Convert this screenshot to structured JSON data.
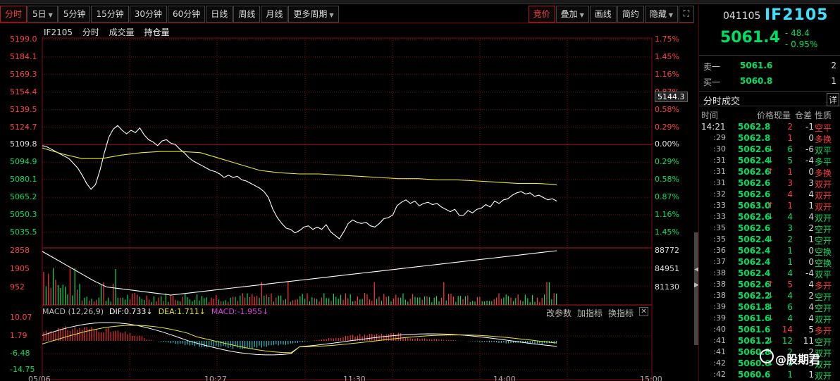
{
  "toolbar": {
    "buttons": [
      {
        "label": "分时",
        "active": true
      },
      {
        "label": "5日",
        "caret": true
      },
      {
        "label": "5分钟"
      },
      {
        "label": "15分钟"
      },
      {
        "label": "30分钟"
      },
      {
        "label": "60分钟"
      },
      {
        "label": "日线"
      },
      {
        "label": "周线"
      },
      {
        "label": "月线"
      },
      {
        "label": "更多周期",
        "caret": true
      }
    ],
    "right_buttons": [
      {
        "label": "竞价",
        "active": true
      },
      {
        "label": "叠加",
        "caret": true
      },
      {
        "label": "画线"
      },
      {
        "label": "简约"
      },
      {
        "label": "隐藏",
        "caret": true
      }
    ],
    "icons": [
      "expand-icon"
    ]
  },
  "chart_title": {
    "symbol": "IF2105",
    "items": [
      "分时",
      "成交量",
      "持仓量"
    ]
  },
  "price_axis_left": [
    "5199.0",
    "5184.1",
    "5169.3",
    "5154.4",
    "5139.5",
    "5124.7",
    "5109.8",
    "5094.9",
    "5080.1",
    "5065.2",
    "5050.3",
    "5035.5"
  ],
  "price_axis_right": [
    "1.75%",
    "1.45%",
    "1.16%",
    "0.87%",
    "0.58%",
    "0.29%",
    "0.00%",
    "0.29%",
    "0.58%",
    "0.87%",
    "1.16%",
    "1.45%"
  ],
  "price_axis_right_colors": [
    "#ff4040",
    "#ff4040",
    "#ff4040",
    "#ff4040",
    "#ff4040",
    "#ff4040",
    "#dddddd",
    "#00e060",
    "#00e060",
    "#00e060",
    "#00e060",
    "#00e060"
  ],
  "current_price_tag": "5144.3",
  "volume_axis_left": [
    "2858",
    "1905",
    "952"
  ],
  "oi_axis_right": [
    "88772",
    "84951",
    "81130"
  ],
  "macd": {
    "label": "MACD (12,26,9)",
    "dif": "DIF:0.733↓",
    "dea": "DEA:1.711↓",
    "macd": "MACD:-1.955↓",
    "axis": [
      "10.07",
      "1.79",
      "-6.48",
      "-14.75"
    ],
    "tools": [
      "改参数",
      "加指标",
      "换指标"
    ]
  },
  "time_axis": [
    "05/06",
    "10:27",
    "11:30",
    "14:00",
    "15:00"
  ],
  "chart_data": {
    "type": "line",
    "y_range": [
      5035.5,
      5199.0
    ],
    "price_series": [
      5109,
      5108,
      5106,
      5104,
      5102,
      5100,
      5098,
      5094,
      5090,
      5084,
      5077,
      5072,
      5076,
      5088,
      5103,
      5116,
      5123,
      5126,
      5122,
      5119,
      5122,
      5120,
      5124,
      5118,
      5114,
      5112,
      5109,
      5113,
      5114,
      5111,
      5110,
      5106,
      5103,
      5099,
      5096,
      5094,
      5092,
      5090,
      5088,
      5087,
      5085,
      5082,
      5084,
      5082,
      5083,
      5080,
      5079,
      5077,
      5075,
      5073,
      5070,
      5065,
      5055,
      5048,
      5043,
      5039,
      5038,
      5035,
      5037,
      5040,
      5041,
      5038,
      5040,
      5038,
      5042,
      5036,
      5033,
      5030,
      5036,
      5043,
      5046,
      5044,
      5043,
      5044,
      5041,
      5040,
      5043,
      5047,
      5048,
      5050,
      5058,
      5061,
      5063,
      5060,
      5062,
      5058,
      5060,
      5061,
      5059,
      5060,
      5057,
      5055,
      5053,
      5055,
      5050,
      5050,
      5054,
      5052,
      5055,
      5056,
      5059,
      5057,
      5062,
      5060,
      5063,
      5064,
      5067,
      5069,
      5070,
      5068,
      5069,
      5066,
      5067,
      5065,
      5063,
      5064,
      5062
    ],
    "avg_series": [
      5107,
      5102,
      5098,
      5098,
      5101,
      5103,
      5104,
      5104,
      5103,
      5098,
      5093,
      5088,
      5086,
      5085,
      5085,
      5084,
      5083,
      5082,
      5081,
      5081,
      5080,
      5080,
      5079,
      5078,
      5077,
      5077,
      5076
    ],
    "volume_y_range": [
      0,
      2858
    ],
    "oi_y_range": [
      81130,
      88772
    ],
    "macd_y_range": [
      -14.75,
      10.07
    ]
  },
  "quote": {
    "code": "041105",
    "symbol": "IF2105",
    "last": "5061.4",
    "change": "- 48.4",
    "change_pct": "- 0.95%"
  },
  "order_book": [
    {
      "label": "卖一",
      "price": "5061.6",
      "qty": "2"
    },
    {
      "label": "买一",
      "price": "5060.8",
      "qty": "1"
    }
  ],
  "trades_panel": {
    "title": "分时成交",
    "detail": "详",
    "columns": [
      "时间",
      "价格",
      "现量",
      "仓差",
      "性质"
    ],
    "rows": [
      {
        "t": "14:21",
        "p": "5062.8",
        "a": "",
        "v": "2",
        "vc": "up",
        "o": "-1",
        "ty": "空平",
        "tc": "up"
      },
      {
        "t": ":29",
        "p": "5062.8",
        "a": "",
        "v": "1",
        "vc": "up",
        "o": "0",
        "ty": "多换",
        "tc": "up"
      },
      {
        "t": ":30",
        "p": "5062.6",
        "a": "↓",
        "v": "6",
        "vc": "dn",
        "o": "-6",
        "ty": "双平",
        "tc": "dn"
      },
      {
        "t": ":31",
        "p": "5062.4",
        "a": "↓",
        "v": "5",
        "vc": "dn",
        "o": "-4",
        "ty": "多平",
        "tc": "dn"
      },
      {
        "t": ":31",
        "p": "5062.6",
        "a": "↑",
        "v": "1",
        "vc": "up",
        "o": "0",
        "ty": "多换",
        "tc": "up"
      },
      {
        "t": ":31",
        "p": "5062.6",
        "a": "",
        "v": "3",
        "vc": "up",
        "o": "3",
        "ty": "双开",
        "tc": "up"
      },
      {
        "t": ":32",
        "p": "5062.6",
        "a": "",
        "v": "4",
        "vc": "up",
        "o": "4",
        "ty": "双开",
        "tc": "up"
      },
      {
        "t": ":33",
        "p": "5063.0",
        "a": "↑",
        "v": "1",
        "vc": "up",
        "o": "1",
        "ty": "双开",
        "tc": "up"
      },
      {
        "t": ":33",
        "p": "5062.6",
        "a": "↓",
        "v": "4",
        "vc": "dn",
        "o": "4",
        "ty": "双开",
        "tc": "dn"
      },
      {
        "t": ":35",
        "p": "5062.6",
        "a": "",
        "v": "3",
        "vc": "dn",
        "o": "2",
        "ty": "空开",
        "tc": "dn"
      },
      {
        "t": ":35",
        "p": "5062.4",
        "a": "↓",
        "v": "2",
        "vc": "dn",
        "o": "1",
        "ty": "空开",
        "tc": "dn"
      },
      {
        "t": ":36",
        "p": "5062.4",
        "a": "",
        "v": "1",
        "vc": "dn",
        "o": "0",
        "ty": "空换",
        "tc": "dn"
      },
      {
        "t": ":37",
        "p": "5062.4",
        "a": "",
        "v": "1",
        "vc": "dn",
        "o": "0",
        "ty": "空换",
        "tc": "dn"
      },
      {
        "t": ":38",
        "p": "5062.4",
        "a": "",
        "v": "4",
        "vc": "dn",
        "o": "-4",
        "ty": "双平",
        "tc": "dn"
      },
      {
        "t": ":38",
        "p": "5062.6",
        "a": "↑",
        "v": "5",
        "vc": "up",
        "o": "4",
        "ty": "多开",
        "tc": "up"
      },
      {
        "t": ":38",
        "p": "5062.2",
        "a": "↓",
        "v": "4",
        "vc": "dn",
        "o": "2",
        "ty": "空开",
        "tc": "dn"
      },
      {
        "t": ":39",
        "p": "5061.8",
        "a": "↓",
        "v": "6",
        "vc": "dn",
        "o": "4",
        "ty": "空开",
        "tc": "dn"
      },
      {
        "t": ":39",
        "p": "5061.6",
        "a": "↓",
        "v": "4",
        "vc": "dn",
        "o": "4",
        "ty": "双开",
        "tc": "dn"
      },
      {
        "t": ":40",
        "p": "5061.6",
        "a": "",
        "v": "14",
        "vc": "up",
        "o": "5",
        "ty": "多开",
        "tc": "up"
      },
      {
        "t": ":41",
        "p": "5061.2",
        "a": "↓",
        "v": "12",
        "vc": "dn",
        "o": "11",
        "ty": "空开",
        "tc": "dn"
      },
      {
        "t": ":41",
        "p": "5060.8",
        "a": "↓",
        "v": "2",
        "vc": "dn",
        "o": "2",
        "ty": "双开",
        "tc": "dn"
      },
      {
        "t": ":42",
        "p": "5060.6",
        "a": "↓",
        "v": "3",
        "vc": "dn",
        "o": "3",
        "ty": "双开",
        "tc": "dn"
      },
      {
        "t": ":42",
        "p": "5060.6",
        "a": "",
        "v": "1",
        "vc": "dn",
        "o": "1",
        "ty": "双开",
        "tc": "dn"
      }
    ]
  },
  "watermark": "@股期君",
  "colors": {
    "up": "#ff3b3b",
    "down": "#00e060",
    "price_line": "#ffffff",
    "avg_line": "#e8e830",
    "grid": "#7a1010"
  }
}
